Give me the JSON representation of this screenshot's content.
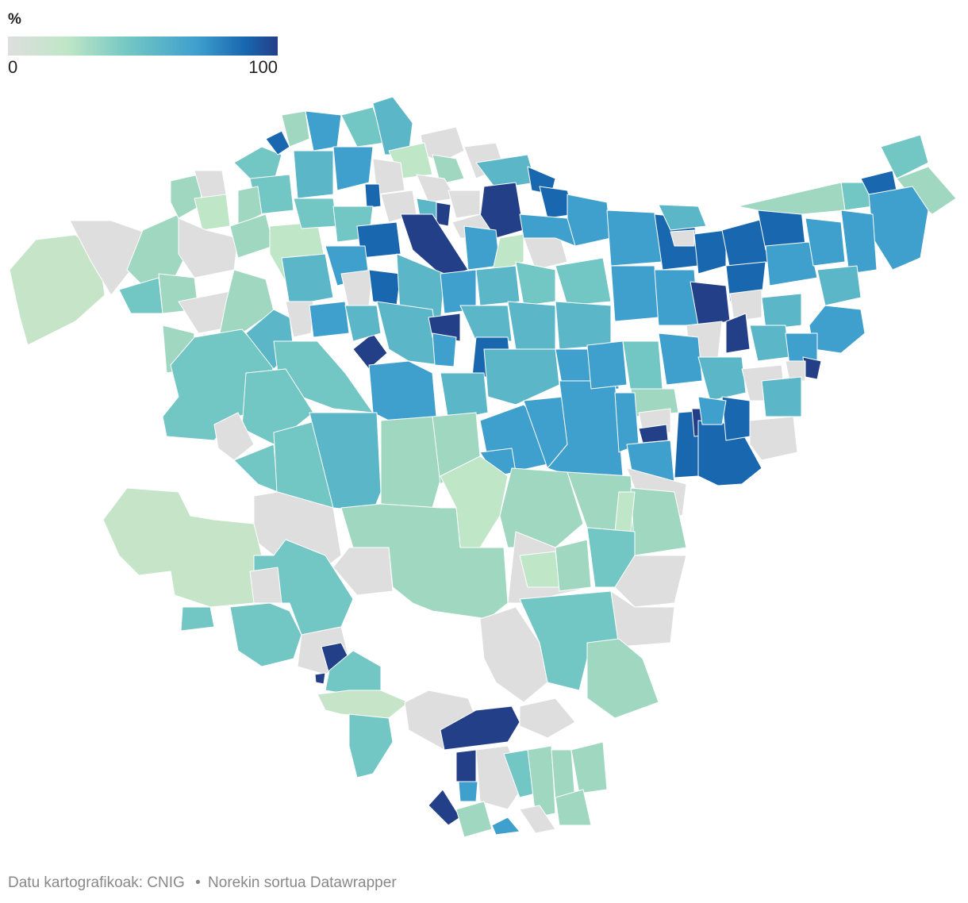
{
  "legend": {
    "title": "%",
    "min_label": "0",
    "max_label": "100",
    "range": [
      0,
      100
    ],
    "colors": [
      "#dedede",
      "#bfe6c6",
      "#72c6c4",
      "#3f9fcd",
      "#1867af",
      "#233f88"
    ]
  },
  "footer": {
    "source": "Datu kartografikoak: CNIG",
    "separator": "•",
    "credit": "Norekin sortua Datawrapper"
  },
  "map": {
    "no_data_color": "#dedede",
    "border_color": "#ffffff"
  }
}
